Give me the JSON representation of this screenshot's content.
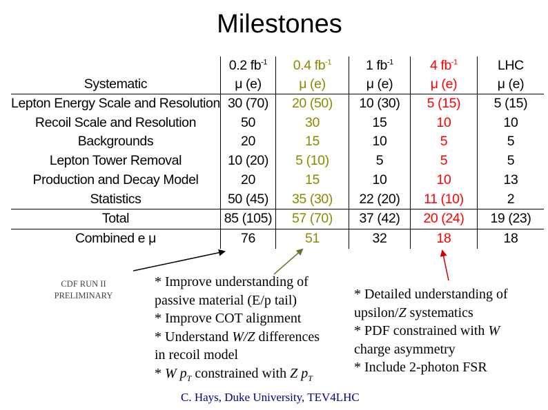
{
  "title": "Milestones",
  "table": {
    "header_row1": [
      "",
      "0.2 fb",
      "0.4 fb",
      "1 fb",
      "4 fb",
      "LHC"
    ],
    "header_exp": "-1",
    "header_row2": [
      "Systematic",
      "μ (e)",
      "μ (e)",
      "μ (e)",
      "μ (e)",
      "μ (e)"
    ],
    "rows": [
      [
        "Lepton Energy Scale and Resolution",
        "30 (70)",
        "20 (50)",
        "10 (30)",
        "5 (15)",
        "5 (15)"
      ],
      [
        "Recoil Scale and Resolution",
        "50",
        "30",
        "15",
        "10",
        "10"
      ],
      [
        "Backgrounds",
        "20",
        "15",
        "10",
        "5",
        "5"
      ],
      [
        "Lepton Tower Removal",
        "10 (20)",
        "5 (10)",
        "5",
        "5",
        "5"
      ],
      [
        "Production and Decay Model",
        "20",
        "15",
        "10",
        "10",
        "13"
      ],
      [
        "Statistics",
        "50 (45)",
        "35 (30)",
        "22 (20)",
        "11 (10)",
        "2"
      ],
      [
        "Total",
        "85 (105)",
        "57 (70)",
        "37 (42)",
        "20 (24)",
        "19 (23)"
      ],
      [
        "Combined e μ",
        "76",
        "51",
        "32",
        "18",
        "18"
      ]
    ]
  },
  "preliminary": [
    "CDF RUN II",
    "PRELIMINARY"
  ],
  "notes_left": {
    "line1": "* Improve understanding of",
    "line2": "passive material (E/p tail)",
    "line3": "* Improve COT alignment",
    "line4a": "* Understand ",
    "line4b": "W/Z",
    "line4c": " differences",
    "line5": "in recoil model",
    "line6a": "* ",
    "line6b": "W p",
    "line6c": "T",
    "line6d": " constrained with ",
    "line6e": "Z p",
    "line6f": "T"
  },
  "notes_right": {
    "line1": "* Detailed understanding of",
    "line2a": "upsilon/",
    "line2b": "Z",
    "line2c": " systematics",
    "line3a": "* PDF constrained with ",
    "line3b": "W",
    "line4": "charge asymmetry",
    "line5": "* Include 2-photon FSR"
  },
  "footer": "C. Hays, Duke University, TEV4LHC",
  "colors": {
    "col_04": "#8a8a00",
    "col_4": "#ff0000",
    "footer": "#000080"
  }
}
